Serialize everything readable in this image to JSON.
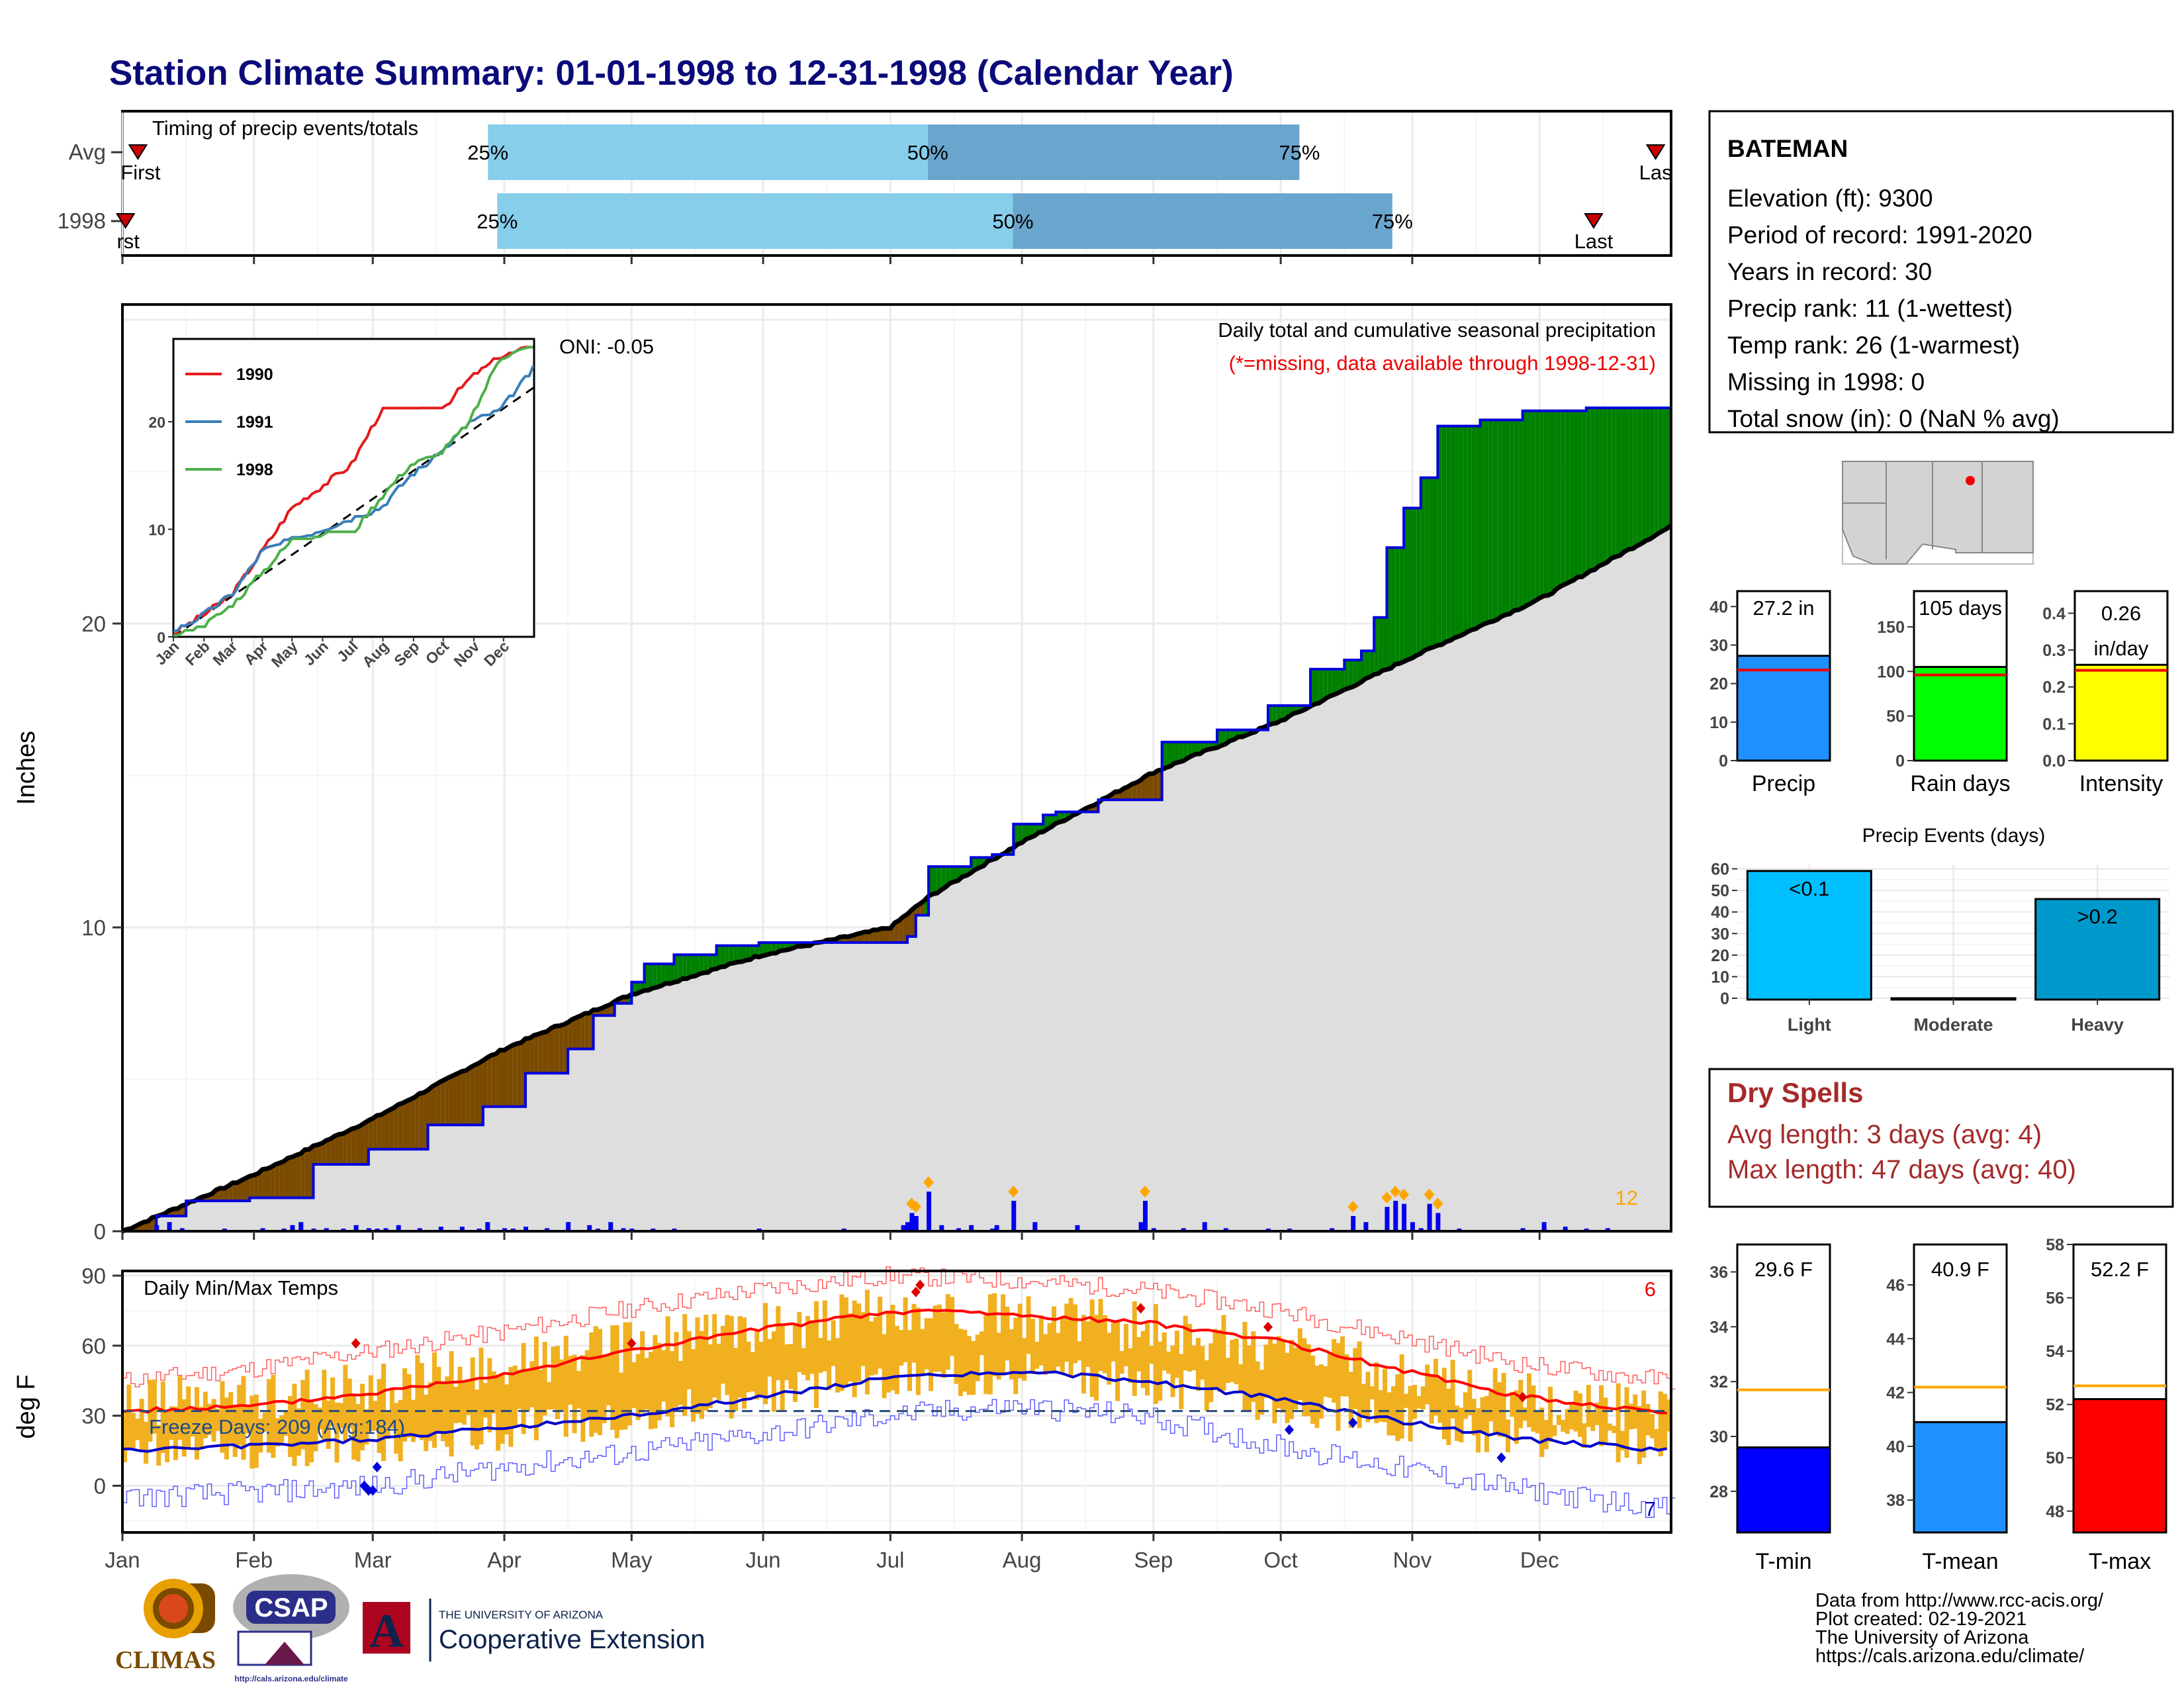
{
  "title": "Station Climate Summary: 01-01-1998 to 12-31-1998 (Calendar Year)",
  "colors": {
    "title": "#0a0a7a",
    "q_light": "#87ceeb",
    "q_dark": "#6aa5cd",
    "pos_anom": "#008000",
    "neg_anom": "#7a4a00",
    "normal_fill": "#dedede",
    "obs_line": "#0000dd",
    "temp_bar": "#f0b020",
    "tmax_avg": "#ff0000",
    "tmin_avg": "#0000cc",
    "dry_spells": "#a52a2a"
  },
  "months": [
    "Jan",
    "Feb",
    "Mar",
    "Apr",
    "May",
    "Jun",
    "Jul",
    "Aug",
    "Sep",
    "Oct",
    "Nov",
    "Dec"
  ],
  "timing": {
    "title": "Timing of precip events/totals",
    "rows": [
      {
        "label": "Avg",
        "q25": 0.236,
        "q50": 0.52,
        "q75": 0.76,
        "first": 0.01,
        "last": 0.99,
        "first_label": "First",
        "last_label": "Las",
        "p25": "25%",
        "p50": "50%",
        "p75": "75%"
      },
      {
        "label": "1998",
        "q25": 0.242,
        "q50": 0.575,
        "q75": 0.82,
        "first": 0.002,
        "last": 0.95,
        "first_label": "rst",
        "last_label": "Last",
        "p25": "25%",
        "p50": "50%",
        "p75": "75%"
      }
    ]
  },
  "precip": {
    "ylabel": "Inches",
    "yticks": [
      0,
      10,
      20
    ],
    "ylim": [
      0,
      30.5
    ],
    "title": "Daily total and cumulative seasonal precipitation",
    "subtitle": "(*=missing, data available through 1998-12-31)",
    "oni": "ONI: -0.05",
    "extreme_count": "12",
    "chart_data": {
      "type": "area",
      "x_unit": "day of year",
      "observed_cumulative": [
        [
          0,
          0
        ],
        [
          8,
          0.5
        ],
        [
          15,
          1.0
        ],
        [
          30,
          1.1
        ],
        [
          45,
          2.2
        ],
        [
          58,
          2.7
        ],
        [
          72,
          3.5
        ],
        [
          85,
          4.1
        ],
        [
          95,
          5.2
        ],
        [
          105,
          6.0
        ],
        [
          111,
          7.1
        ],
        [
          116,
          7.5
        ],
        [
          120,
          8.2
        ],
        [
          123,
          8.8
        ],
        [
          130,
          9.1
        ],
        [
          140,
          9.4
        ],
        [
          150,
          9.5
        ],
        [
          160,
          9.5
        ],
        [
          172,
          9.5
        ],
        [
          180,
          9.5
        ],
        [
          185,
          9.7
        ],
        [
          187,
          10.4
        ],
        [
          190,
          12.0
        ],
        [
          200,
          12.3
        ],
        [
          205,
          12.4
        ],
        [
          210,
          13.4
        ],
        [
          217,
          13.7
        ],
        [
          220,
          13.8
        ],
        [
          230,
          14.2
        ],
        [
          245,
          16.1
        ],
        [
          258,
          16.5
        ],
        [
          270,
          17.3
        ],
        [
          280,
          18.5
        ],
        [
          288,
          18.8
        ],
        [
          292,
          19.1
        ],
        [
          295,
          20.2
        ],
        [
          298,
          22.5
        ],
        [
          302,
          23.8
        ],
        [
          306,
          24.8
        ],
        [
          310,
          26.5
        ],
        [
          320,
          26.7
        ],
        [
          330,
          27.0
        ],
        [
          345,
          27.1
        ],
        [
          365,
          27.2
        ]
      ],
      "normal_cumulative": [
        [
          0,
          0
        ],
        [
          30,
          1.8
        ],
        [
          59,
          3.7
        ],
        [
          90,
          6.0
        ],
        [
          100,
          6.6
        ],
        [
          120,
          7.8
        ],
        [
          151,
          9.1
        ],
        [
          181,
          10.0
        ],
        [
          190,
          11.0
        ],
        [
          212,
          12.8
        ],
        [
          243,
          15.1
        ],
        [
          273,
          16.8
        ],
        [
          304,
          18.9
        ],
        [
          334,
          20.8
        ],
        [
          365,
          23.2
        ]
      ],
      "daily_bar_days": [
        8,
        11,
        14,
        24,
        33,
        38,
        40,
        42,
        45,
        48,
        52,
        55,
        58,
        60,
        62,
        65,
        70,
        75,
        80,
        84,
        86,
        90,
        92,
        95,
        100,
        105,
        110,
        112,
        115,
        118,
        120,
        125,
        130,
        150,
        170,
        184,
        185,
        186,
        187,
        190,
        193,
        197,
        200,
        205,
        206,
        210,
        215,
        225,
        240,
        241,
        243,
        250,
        255,
        260,
        270,
        275,
        285,
        290,
        293,
        298,
        300,
        302,
        304,
        306,
        308,
        310,
        315,
        330,
        335,
        340,
        345,
        350
      ],
      "daily_bar_values": [
        0.2,
        0.3,
        0.1,
        0.05,
        0.1,
        0.05,
        0.2,
        0.3,
        0.05,
        0.1,
        0.05,
        0.2,
        0.1,
        0.05,
        0.1,
        0.2,
        0.1,
        0.15,
        0.15,
        0.05,
        0.3,
        0.1,
        0.05,
        0.15,
        0.1,
        0.3,
        0.2,
        0.05,
        0.3,
        0.1,
        0.05,
        0.05,
        0.05,
        0.05,
        0.05,
        0.2,
        0.3,
        0.6,
        0.5,
        1.3,
        0.2,
        0.1,
        0.2,
        0.05,
        0.2,
        1.0,
        0.3,
        0.2,
        0.3,
        1.0,
        0.1,
        0.1,
        0.3,
        0.1,
        0.05,
        0.05,
        0.1,
        0.5,
        0.3,
        0.8,
        1.0,
        0.9,
        0.3,
        0.1,
        0.9,
        0.6,
        0.05,
        0.1,
        0.3,
        0.15,
        0.05,
        0.1
      ]
    },
    "inset": {
      "yticks": [
        0,
        10,
        20
      ],
      "months": [
        "Jan",
        "Feb",
        "Mar",
        "Apr",
        "May",
        "Jun",
        "Jul",
        "Aug",
        "Sep",
        "Oct",
        "Nov",
        "Dec"
      ],
      "series": [
        {
          "name": "1990",
          "color": "#e41a1c",
          "values": [
            [
              0,
              0.3
            ],
            [
              30,
              2
            ],
            [
              60,
              4
            ],
            [
              90,
              8
            ],
            [
              120,
              12
            ],
            [
              150,
              14
            ],
            [
              180,
              16
            ],
            [
              210,
              21
            ],
            [
              240,
              21
            ],
            [
              270,
              21
            ],
            [
              300,
              24
            ],
            [
              330,
              26
            ],
            [
              365,
              27
            ]
          ]
        },
        {
          "name": "1991",
          "color": "#377eb8",
          "values": [
            [
              0,
              0.5
            ],
            [
              30,
              2
            ],
            [
              60,
              4
            ],
            [
              90,
              8
            ],
            [
              120,
              9
            ],
            [
              150,
              10
            ],
            [
              180,
              11
            ],
            [
              210,
              12
            ],
            [
              240,
              15
            ],
            [
              270,
              17
            ],
            [
              300,
              20
            ],
            [
              330,
              21
            ],
            [
              365,
              25
            ]
          ]
        },
        {
          "name": "1998",
          "color": "#4daf4a",
          "values": [
            [
              0,
              0
            ],
            [
              30,
              1
            ],
            [
              60,
              3
            ],
            [
              90,
              6
            ],
            [
              120,
              9
            ],
            [
              150,
              9.5
            ],
            [
              180,
              9.5
            ],
            [
              210,
              13
            ],
            [
              240,
              16
            ],
            [
              270,
              17
            ],
            [
              300,
              20
            ],
            [
              330,
              26
            ],
            [
              365,
              27
            ]
          ]
        }
      ]
    }
  },
  "temps": {
    "ylabel": "deg F",
    "title": "Daily Min/Max Temps",
    "yticks": [
      0,
      30,
      60,
      90
    ],
    "ylim": [
      -20,
      92
    ],
    "freeze": "Freeze Days: 209 (Avg:184)",
    "freeze_line": 32,
    "max_count": "6",
    "min_count": "7",
    "chart_data": {
      "type": "line",
      "x_unit": "day of year",
      "tmax_avg": [
        [
          0,
          32
        ],
        [
          30,
          34
        ],
        [
          60,
          40
        ],
        [
          90,
          48
        ],
        [
          120,
          58
        ],
        [
          150,
          67
        ],
        [
          180,
          74
        ],
        [
          195,
          75
        ],
        [
          210,
          73
        ],
        [
          240,
          70
        ],
        [
          270,
          63
        ],
        [
          300,
          50
        ],
        [
          330,
          38
        ],
        [
          365,
          31
        ]
      ],
      "tmin_avg": [
        [
          0,
          15
        ],
        [
          30,
          17
        ],
        [
          60,
          20
        ],
        [
          90,
          25
        ],
        [
          120,
          30
        ],
        [
          150,
          38
        ],
        [
          180,
          46
        ],
        [
          200,
          48
        ],
        [
          220,
          48
        ],
        [
          240,
          45
        ],
        [
          270,
          38
        ],
        [
          300,
          28
        ],
        [
          330,
          20
        ],
        [
          365,
          15
        ]
      ],
      "record_max": [
        [
          0,
          45
        ],
        [
          30,
          50
        ],
        [
          60,
          58
        ],
        [
          90,
          66
        ],
        [
          120,
          76
        ],
        [
          150,
          84
        ],
        [
          180,
          90
        ],
        [
          210,
          88
        ],
        [
          240,
          84
        ],
        [
          270,
          76
        ],
        [
          300,
          64
        ],
        [
          330,
          52
        ],
        [
          365,
          45
        ]
      ],
      "record_min": [
        [
          0,
          -5
        ],
        [
          30,
          -3
        ],
        [
          60,
          0
        ],
        [
          90,
          8
        ],
        [
          120,
          14
        ],
        [
          150,
          22
        ],
        [
          180,
          30
        ],
        [
          210,
          34
        ],
        [
          240,
          30
        ],
        [
          270,
          18
        ],
        [
          300,
          8
        ],
        [
          330,
          -2
        ],
        [
          365,
          -10
        ]
      ],
      "obs_max_profile": [
        [
          0,
          35
        ],
        [
          30,
          38
        ],
        [
          60,
          42
        ],
        [
          90,
          52
        ],
        [
          120,
          60
        ],
        [
          150,
          68
        ],
        [
          180,
          74
        ],
        [
          210,
          72
        ],
        [
          240,
          68
        ],
        [
          270,
          60
        ],
        [
          300,
          48
        ],
        [
          330,
          38
        ],
        [
          365,
          32
        ]
      ],
      "obs_min_profile": [
        [
          0,
          14
        ],
        [
          30,
          16
        ],
        [
          60,
          18
        ],
        [
          90,
          24
        ],
        [
          120,
          30
        ],
        [
          150,
          38
        ],
        [
          180,
          46
        ],
        [
          210,
          48
        ],
        [
          240,
          44
        ],
        [
          270,
          36
        ],
        [
          300,
          28
        ],
        [
          330,
          20
        ],
        [
          365,
          16
        ]
      ]
    }
  },
  "station": {
    "name": "BATEMAN",
    "lines": [
      "Elevation (ft): 9300",
      "Period of record: 1991-2020",
      "Years in record: 30",
      "Precip rank: 11 (1-wettest)",
      "Temp rank: 26 (1-warmest)",
      "Missing in 1998: 0",
      "Total snow (in): 0 (NaN % avg)"
    ]
  },
  "summary_bars": [
    {
      "label": "Precip",
      "value_label": "27.2 in",
      "value": 27.2,
      "avg": 23.5,
      "ymax": 44,
      "ticks": [
        0,
        10,
        20,
        30,
        40
      ],
      "tick_labels": [
        "0",
        "10",
        "20",
        "30",
        "40"
      ],
      "color": "#1e90ff"
    },
    {
      "label": "Rain days",
      "value_label": "105 days",
      "value": 105,
      "avg": 96,
      "ymax": 190,
      "ticks": [
        0,
        50,
        100,
        150
      ],
      "tick_labels": [
        "0",
        "50",
        "100",
        "150"
      ],
      "color": "#00ff00"
    },
    {
      "label": "Intensity",
      "value_label_1": "0.26",
      "value_label_2": "in/day",
      "value": 0.26,
      "avg": 0.245,
      "ymax": 0.46,
      "ticks": [
        0,
        0.1,
        0.2,
        0.3,
        0.4
      ],
      "tick_labels": [
        "0.0",
        "0.1",
        "0.2",
        "0.3",
        "0.4"
      ],
      "color": "#ffff00"
    }
  ],
  "events": {
    "title": "Precip Events (days)",
    "chart_data": {
      "type": "bar",
      "categories": [
        "Light",
        "Moderate",
        "Heavy"
      ],
      "values": [
        59,
        0,
        46
      ],
      "bar_labels": [
        "<0.1",
        "",
        ">0.2"
      ],
      "ylim": [
        0,
        62
      ],
      "yticks": [
        0,
        10,
        20,
        30,
        40,
        50,
        60
      ],
      "colors": [
        "#00bfff",
        "#1a8fd0",
        "#0099cc"
      ]
    }
  },
  "dry_spells": {
    "title": "Dry Spells",
    "avg": "Avg length: 3 days (avg: 4)",
    "max": "Max length: 47 days (avg: 40)"
  },
  "temp_bars": [
    {
      "label": "T-min",
      "value_label": "29.6 F",
      "value": 29.6,
      "avg": 31.7,
      "ymin": 26.5,
      "ymax": 37,
      "ticks": [
        28,
        30,
        32,
        34,
        36
      ],
      "color": "#0000ff"
    },
    {
      "label": "T-mean",
      "value_label": "40.9 F",
      "value": 40.9,
      "avg": 42.2,
      "ymin": 36.8,
      "ymax": 47.5,
      "ticks": [
        38,
        40,
        42,
        44,
        46
      ],
      "color": "#1e90ff"
    },
    {
      "label": "T-max",
      "value_label": "52.2 F",
      "value": 52.2,
      "avg": 52.7,
      "ymin": 47.2,
      "ymax": 58,
      "ticks": [
        48,
        50,
        52,
        54,
        56,
        58
      ],
      "color": "#ff0000"
    }
  ],
  "footer": {
    "lines": [
      "Data from http://www.rcc-acis.org/",
      "Plot created: 02-19-2021",
      "The University of Arizona",
      "https://cals.arizona.edu/climate/"
    ],
    "climas": "CLIMAS",
    "csap": "CSAP",
    "csap_url": "http://cals.arizona.edu/climate",
    "ua_small": "THE UNIVERSITY OF ARIZONA",
    "ua_big": "Cooperative Extension",
    "ua_letter": "A"
  }
}
